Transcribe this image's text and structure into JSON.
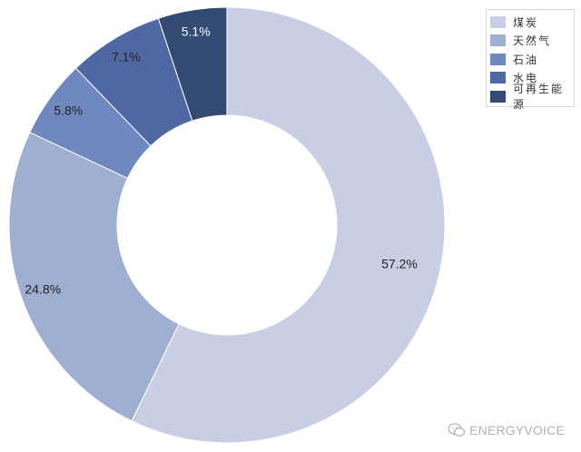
{
  "chart_data": {
    "type": "pie",
    "variant": "donut",
    "categories": [
      "煤炭",
      "天然气",
      "石油",
      "水电",
      "可再生能源"
    ],
    "values": [
      57.2,
      24.8,
      5.8,
      7.1,
      5.1
    ],
    "labels": [
      "57.2%",
      "24.8%",
      "5.8%",
      "7.1%",
      "5.1%"
    ],
    "colors": [
      "#c8cfe5",
      "#9fafd2",
      "#7088c0",
      "#4f67a3",
      "#334a72"
    ],
    "legend_position": "top-right"
  },
  "watermark": {
    "text": "ENERGYVOICE",
    "icon": "wechat-icon"
  }
}
